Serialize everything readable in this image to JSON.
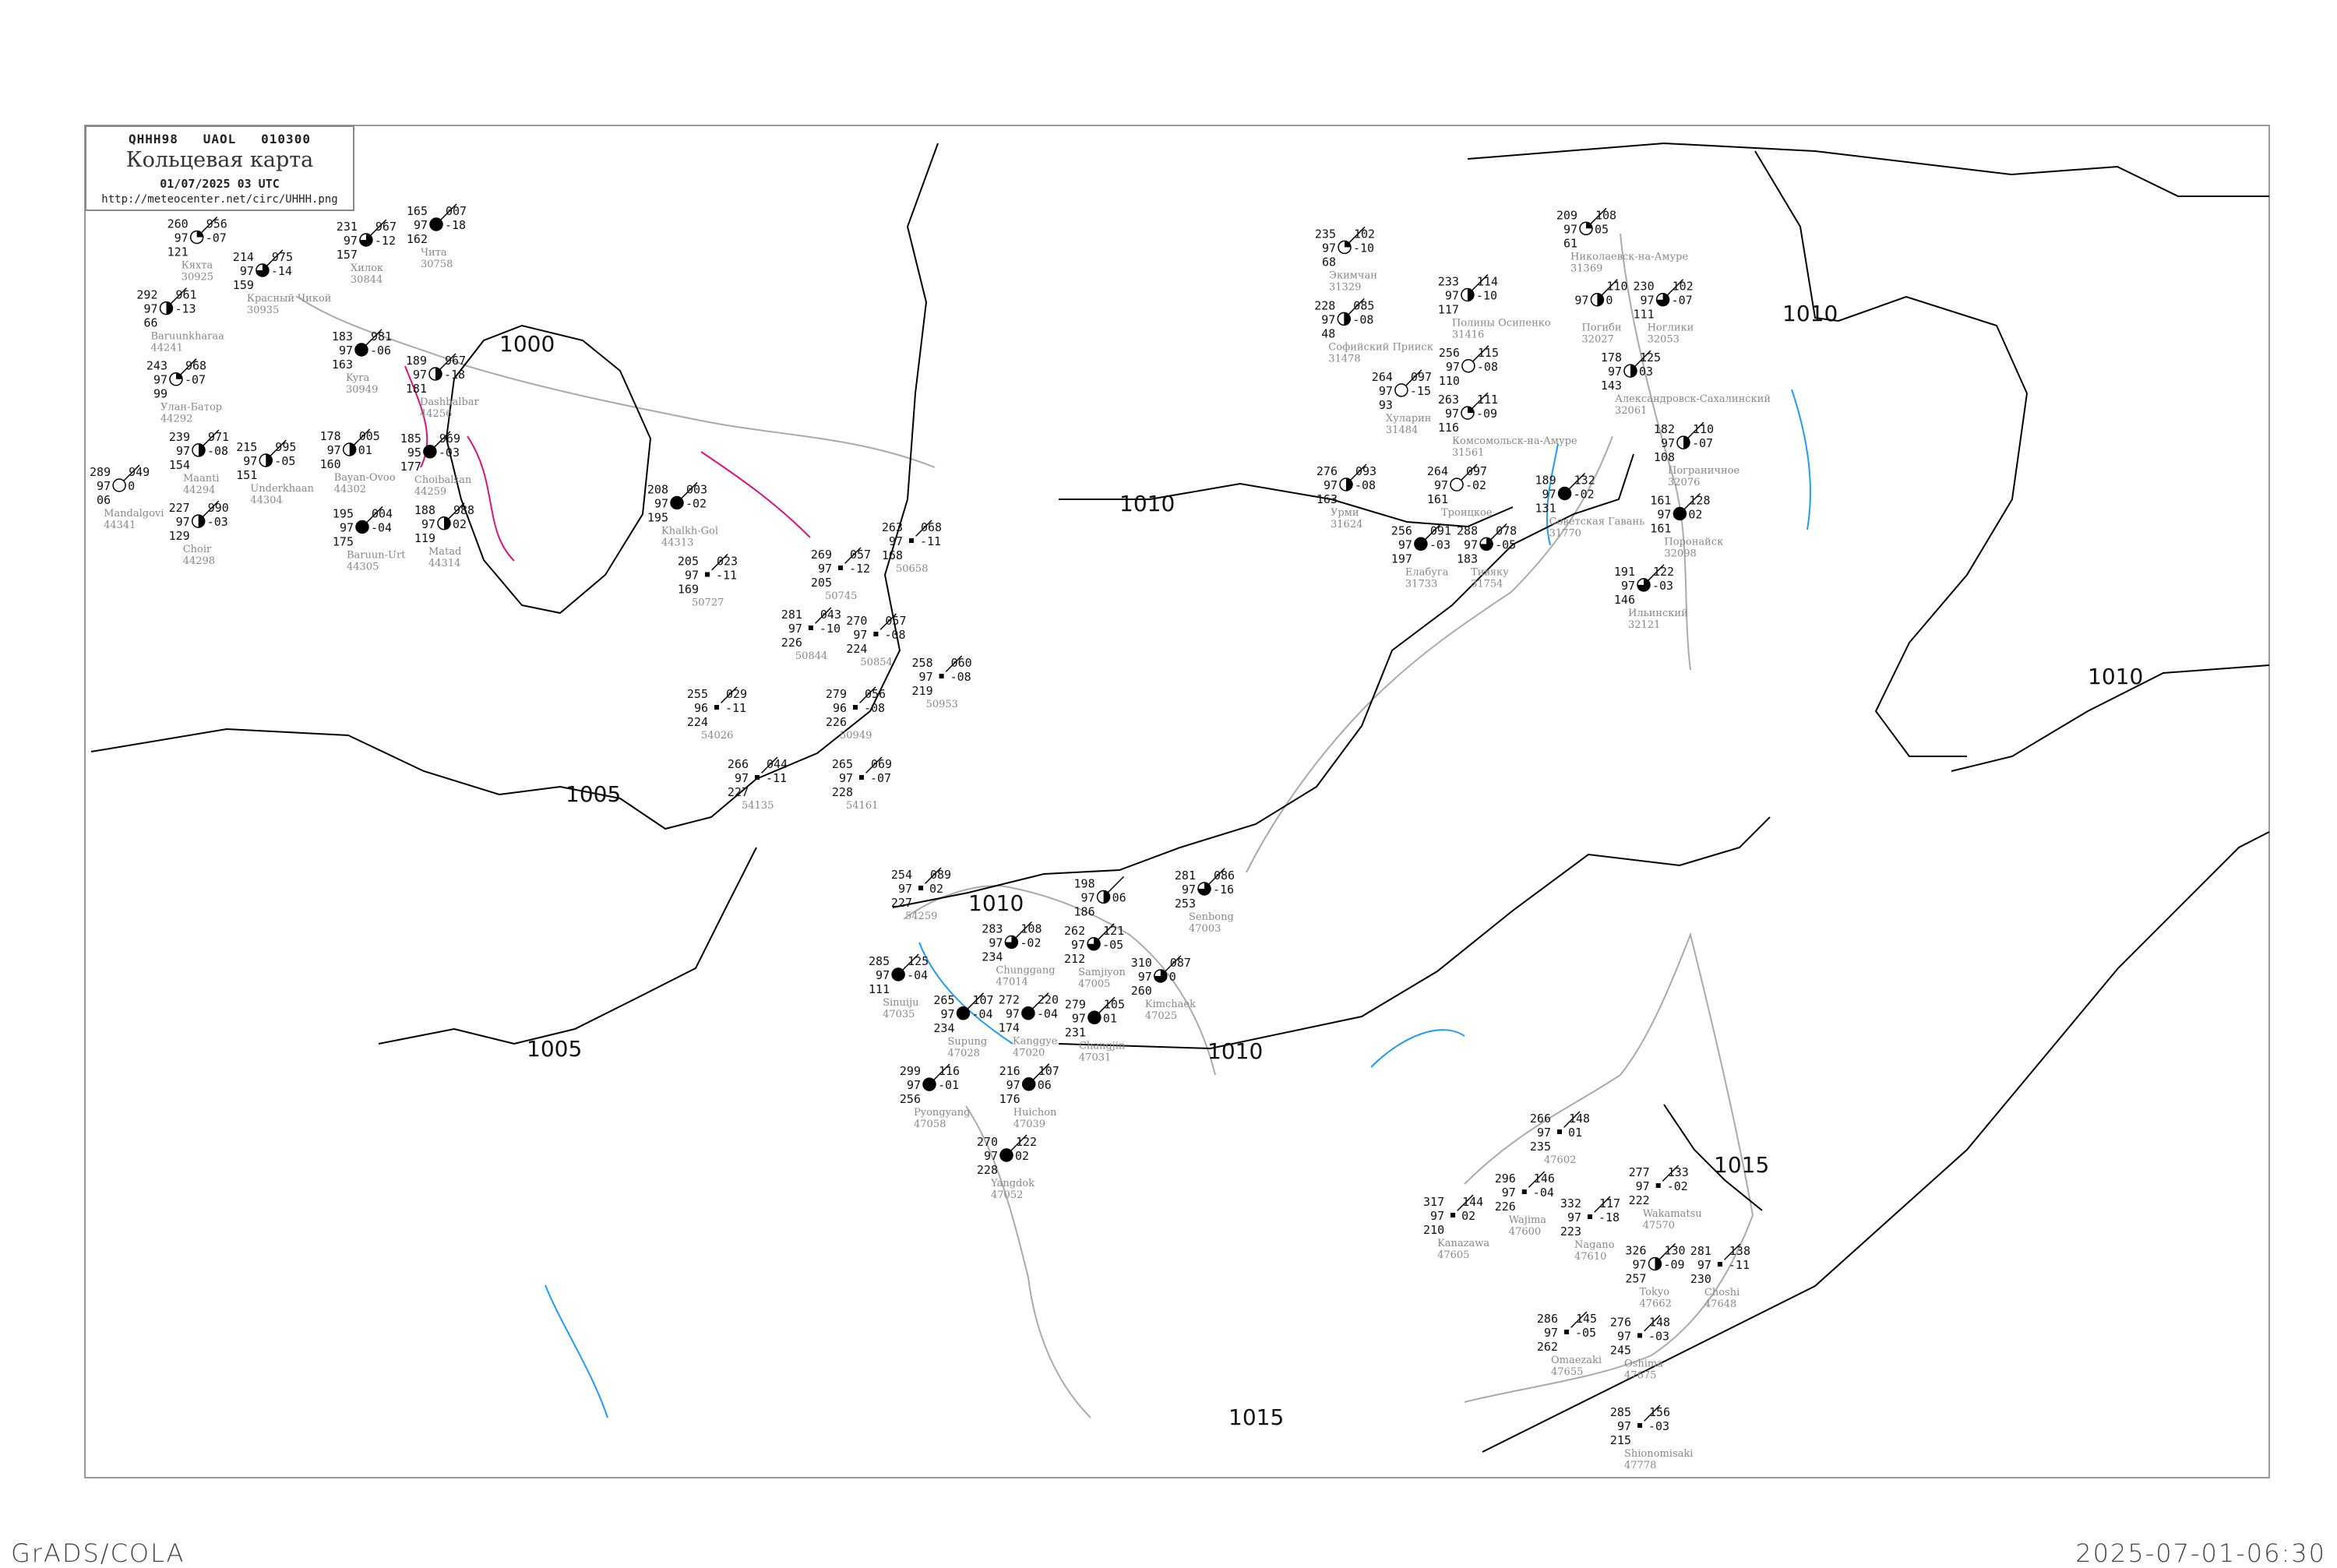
{
  "header": {
    "code": "QHHH98   UAOL   010300",
    "title": "Кольцевая карта",
    "date": "01/07/2025 03 UTC",
    "url": "http://meteocenter.net/circ/UHHH.png"
  },
  "footer": {
    "left": "GrADS/COLA",
    "right": "2025-07-01-06:30"
  },
  "colors": {
    "isobar": "#000000",
    "coast": "#aaaaaa",
    "river": "#1e9bff",
    "front": "#e0107a",
    "precip": "#22cc44",
    "haze": "#c8c89a"
  },
  "isobars": [
    {
      "label": "1000"
    },
    {
      "label": "1005"
    },
    {
      "label": "1005"
    },
    {
      "label": "1010"
    },
    {
      "label": "1010"
    },
    {
      "label": "1010"
    },
    {
      "label": "1010"
    },
    {
      "label": "1010"
    },
    {
      "label": "1015"
    },
    {
      "label": "1015"
    }
  ],
  "stations": [
    {
      "name": "Кяхта",
      "id": "30925",
      "t": "260",
      "v": "97",
      "d": "121",
      "p": "956",
      "tend": "-07",
      "cover": "quarter"
    },
    {
      "name": "Красный Чикой",
      "id": "30935",
      "t": "214",
      "v": "97",
      "d": "159",
      "p": "975",
      "tend": "-14",
      "cover": "threequarter"
    },
    {
      "name": "Хилок",
      "id": "30844",
      "t": "231",
      "v": "97",
      "d": "157",
      "p": "967",
      "tend": "-12",
      "cover": "threequarter"
    },
    {
      "name": "Чита",
      "id": "30758",
      "t": "165",
      "v": "97",
      "d": "162",
      "p": "007",
      "tend": "-18",
      "cover": "full"
    },
    {
      "name": "Baruunkharaa",
      "id": "44241",
      "t": "292",
      "v": "97",
      "d": "66",
      "p": "961",
      "tend": "-13",
      "cover": "half"
    },
    {
      "name": "Улан-Батор",
      "id": "44292",
      "t": "243",
      "v": "97",
      "d": "99",
      "p": "968",
      "tend": "-07",
      "cover": "quarter"
    },
    {
      "name": "Maanti",
      "id": "44294",
      "t": "239",
      "v": "97",
      "d": "154",
      "p": "971",
      "tend": "-08",
      "cover": "half"
    },
    {
      "name": "Mandalgovi",
      "id": "44341",
      "t": "289",
      "v": "97",
      "d": "06",
      "p": "949",
      "tend": "0",
      "cover": "empty"
    },
    {
      "name": "Choir",
      "id": "44298",
      "t": "227",
      "v": "97",
      "d": "129",
      "p": "990",
      "tend": "-03",
      "cover": "half"
    },
    {
      "name": "Underkhaan",
      "id": "44304",
      "t": "215",
      "v": "97",
      "d": "151",
      "p": "995",
      "tend": "-05",
      "cover": "half"
    },
    {
      "name": "Bayan-Ovoo",
      "id": "44302",
      "t": "178",
      "v": "97",
      "d": "160",
      "p": "005",
      "tend": "01",
      "cover": "half"
    },
    {
      "name": "Kyra",
      "id": "30949",
      "t": "183",
      "v": "97",
      "d": "163",
      "p": "981",
      "tend": "-06",
      "cover": "full"
    },
    {
      "name": "Dashbalbar",
      "id": "44256",
      "t": "189",
      "v": "97",
      "d": "181",
      "p": "967",
      "tend": "-18",
      "cover": "half"
    },
    {
      "name": "Choibalsan",
      "id": "44259",
      "t": "185",
      "v": "95",
      "d": "177",
      "p": "969",
      "tend": "-03",
      "cover": "full"
    },
    {
      "name": "Baruun-Urt",
      "id": "44305",
      "t": "195",
      "v": "97",
      "d": "175",
      "p": "004",
      "tend": "-04",
      "cover": "full"
    },
    {
      "name": "Matad",
      "id": "44314",
      "t": "188",
      "v": "97",
      "d": "119",
      "p": "988",
      "tend": "02",
      "cover": "half"
    },
    {
      "name": "Khalkh-Gol",
      "id": "44313",
      "t": "208",
      "v": "97",
      "d": "195",
      "p": "003",
      "tend": "-02",
      "cover": "full"
    },
    {
      "name": "",
      "id": "50727",
      "t": "205",
      "v": "97",
      "d": "169",
      "p": "023",
      "tend": "-11",
      "cover": "none"
    },
    {
      "name": "",
      "id": "50658",
      "t": "263",
      "v": "97",
      "d": "168",
      "p": "068",
      "tend": "-11",
      "cover": "none"
    },
    {
      "name": "",
      "id": "50745",
      "t": "269",
      "v": "97",
      "d": "205",
      "p": "057",
      "tend": "-12",
      "cover": "none"
    },
    {
      "name": "",
      "id": "50844",
      "t": "281",
      "v": "97",
      "d": "226",
      "p": "043",
      "tend": "-10",
      "cover": "none"
    },
    {
      "name": "",
      "id": "50854",
      "t": "270",
      "v": "97",
      "d": "224",
      "p": "057",
      "tend": "-08",
      "cover": "none"
    },
    {
      "name": "",
      "id": "50953",
      "t": "258",
      "v": "97",
      "d": "219",
      "p": "060",
      "tend": "-08",
      "cover": "none"
    },
    {
      "name": "",
      "id": "50949",
      "t": "279",
      "v": "96",
      "d": "226",
      "p": "056",
      "tend": "-08",
      "cover": "none"
    },
    {
      "name": "",
      "id": "54026",
      "t": "255",
      "v": "96",
      "d": "224",
      "p": "029",
      "tend": "-11",
      "cover": "none"
    },
    {
      "name": "",
      "id": "54135",
      "t": "266",
      "v": "97",
      "d": "227",
      "p": "044",
      "tend": "-11",
      "cover": "none"
    },
    {
      "name": "",
      "id": "54161",
      "t": "265",
      "v": "97",
      "d": "228",
      "p": "069",
      "tend": "-07",
      "cover": "none"
    },
    {
      "name": "Экимчан",
      "id": "31329",
      "t": "235",
      "v": "97",
      "d": "68",
      "p": "102",
      "tend": "-10",
      "cover": "quarter"
    },
    {
      "name": "Софийский Прииск",
      "id": "31478",
      "t": "228",
      "v": "97",
      "d": "48",
      "p": "085",
      "tend": "-08",
      "cover": "half"
    },
    {
      "name": "Полины Осипенко",
      "id": "31416",
      "t": "233",
      "v": "97",
      "d": "117",
      "p": "114",
      "tend": "-10",
      "cover": "half"
    },
    {
      "name": "Хуларин",
      "id": "31484",
      "t": "264",
      "v": "97",
      "d": "93",
      "p": "097",
      "tend": "-15",
      "cover": "empty"
    },
    {
      "name": "",
      "id": "",
      "t": "256",
      "v": "97",
      "d": "110",
      "p": "115",
      "tend": "-08",
      "cover": "empty"
    },
    {
      "name": "Комсомольск-на-Амуре",
      "id": "31561",
      "t": "263",
      "v": "97",
      "d": "116",
      "p": "111",
      "tend": "-09",
      "cover": "quarter"
    },
    {
      "name": "Николаевск-на-Амуре",
      "id": "31369",
      "t": "209",
      "v": "97",
      "d": "61",
      "p": "108",
      "tend": "05",
      "cover": "quarter"
    },
    {
      "name": "Погиби",
      "id": "32027",
      "t": "",
      "v": "97",
      "d": "",
      "p": "110",
      "tend": "0",
      "cover": "half"
    },
    {
      "name": "Ноглики",
      "id": "32053",
      "t": "230",
      "v": "97",
      "d": "111",
      "p": "102",
      "tend": "-07",
      "cover": "threequarter"
    },
    {
      "name": "Александровск-Сахалинский",
      "id": "32061",
      "t": "178",
      "v": "97",
      "d": "143",
      "p": "125",
      "tend": "03",
      "cover": "half"
    },
    {
      "name": "Пограничное",
      "id": "32076",
      "t": "182",
      "v": "97",
      "d": "108",
      "p": "110",
      "tend": "-07",
      "cover": "half"
    },
    {
      "name": "Урми",
      "id": "31624",
      "t": "276",
      "v": "97",
      "d": "163",
      "p": "093",
      "tend": "-08",
      "cover": "half"
    },
    {
      "name": "Троицкое",
      "id": "",
      "t": "264",
      "v": "97",
      "d": "161",
      "p": "097",
      "tend": "-02",
      "cover": "empty"
    },
    {
      "name": "Елабуга",
      "id": "31733",
      "t": "256",
      "v": "97",
      "d": "197",
      "p": "091",
      "tend": "-03",
      "cover": "full"
    },
    {
      "name": "Тивяку",
      "id": "31754",
      "t": "288",
      "v": "97",
      "d": "183",
      "p": "078",
      "tend": "-05",
      "cover": "threequarter"
    },
    {
      "name": "Советская Гавань",
      "id": "31770",
      "t": "189",
      "v": "97",
      "d": "131",
      "p": "132",
      "tend": "-02",
      "cover": "full"
    },
    {
      "name": "Поронайск",
      "id": "32098",
      "t": "161",
      "v": "97",
      "d": "161",
      "p": "128",
      "tend": "02",
      "cover": "full"
    },
    {
      "name": "Ильинский",
      "id": "32121",
      "t": "191",
      "v": "97",
      "d": "146",
      "p": "122",
      "tend": "-03",
      "cover": "threequarter"
    },
    {
      "name": "",
      "id": "54259",
      "t": "254",
      "v": "97",
      "d": "227",
      "p": "089",
      "tend": "02",
      "cover": "none"
    },
    {
      "name": "Chunggang",
      "id": "47014",
      "t": "283",
      "v": "97",
      "d": "234",
      "p": "108",
      "tend": "-02",
      "cover": "threequarter"
    },
    {
      "name": "",
      "id": "",
      "t": "198",
      "v": "97",
      "d": "186",
      "p": "",
      "tend": "06",
      "cover": "half"
    },
    {
      "name": "Samjiyon",
      "id": "47005",
      "t": "262",
      "v": "97",
      "d": "212",
      "p": "121",
      "tend": "-05",
      "cover": "threequarter"
    },
    {
      "name": "Kanggye",
      "id": "47020",
      "t": "272",
      "v": "97",
      "d": "174",
      "p": "220",
      "tend": "-04",
      "cover": "full"
    },
    {
      "name": "Sinuiju",
      "id": "47035",
      "t": "285",
      "v": "97",
      "d": "111",
      "p": "125",
      "tend": "-04",
      "cover": "full"
    },
    {
      "name": "Supung",
      "id": "47028",
      "t": "265",
      "v": "97",
      "d": "234",
      "p": "107",
      "tend": "-04",
      "cover": "full"
    },
    {
      "name": "Huichon",
      "id": "47039",
      "t": "216",
      "v": "97",
      "d": "176",
      "p": "107",
      "tend": "06",
      "cover": "full"
    },
    {
      "name": "Changjin",
      "id": "47031",
      "t": "279",
      "v": "97",
      "d": "231",
      "p": "105",
      "tend": "01",
      "cover": "full"
    },
    {
      "name": "Kimchaek",
      "id": "47025",
      "t": "310",
      "v": "97",
      "d": "260",
      "p": "087",
      "tend": "0",
      "cover": "threequarter"
    },
    {
      "name": "Senbong",
      "id": "47003",
      "t": "281",
      "v": "97",
      "d": "253",
      "p": "086",
      "tend": "-16",
      "cover": "threequarter"
    },
    {
      "name": "Yangdok",
      "id": "47052",
      "t": "270",
      "v": "97",
      "d": "228",
      "p": "122",
      "tend": "02",
      "cover": "full"
    },
    {
      "name": "Pyongyang",
      "id": "47058",
      "t": "299",
      "v": "97",
      "d": "256",
      "p": "116",
      "tend": "-01",
      "cover": "full"
    },
    {
      "name": "",
      "id": "47602",
      "t": "266",
      "v": "97",
      "d": "235",
      "p": "148",
      "tend": "01",
      "cover": "none"
    },
    {
      "name": "Wajima",
      "id": "47600",
      "t": "296",
      "v": "97",
      "d": "226",
      "p": "146",
      "tend": "-04",
      "cover": "none"
    },
    {
      "name": "Kanazawa",
      "id": "47605",
      "t": "317",
      "v": "97",
      "d": "210",
      "p": "144",
      "tend": "02",
      "cover": "none"
    },
    {
      "name": "Nagano",
      "id": "47610",
      "t": "332",
      "v": "97",
      "d": "223",
      "p": "117",
      "tend": "-18",
      "cover": "none"
    },
    {
      "name": "Wakamatsu",
      "id": "47570",
      "t": "277",
      "v": "97",
      "d": "222",
      "p": "133",
      "tend": "-02",
      "cover": "none"
    },
    {
      "name": "Tokyo",
      "id": "47662",
      "t": "326",
      "v": "97",
      "d": "257",
      "p": "130",
      "tend": "-09",
      "cover": "half"
    },
    {
      "name": "Choshi",
      "id": "47648",
      "t": "281",
      "v": "97",
      "d": "230",
      "p": "138",
      "tend": "-11",
      "cover": "none"
    },
    {
      "name": "Omaezaki",
      "id": "47655",
      "t": "286",
      "v": "97",
      "d": "262",
      "p": "145",
      "tend": "-05",
      "cover": "none"
    },
    {
      "name": "Oshima",
      "id": "47675",
      "t": "276",
      "v": "97",
      "d": "245",
      "p": "148",
      "tend": "-03",
      "cover": "none"
    },
    {
      "name": "Shionomisaki",
      "id": "47778",
      "t": "285",
      "v": "97",
      "d": "215",
      "p": "156",
      "tend": "-03",
      "cover": "none"
    }
  ]
}
